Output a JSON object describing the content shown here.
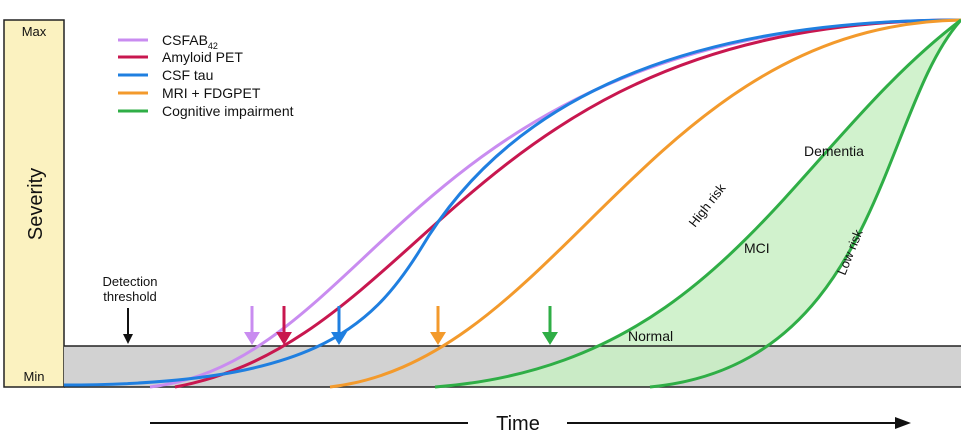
{
  "y_axis": {
    "title": "Severity",
    "max_label": "Max",
    "min_label": "Min",
    "band_color": "#fbf2c0"
  },
  "x_axis": {
    "title": "Time"
  },
  "threshold": {
    "label_line1": "Detection",
    "label_line2": "threshold",
    "band_color": "#d2d2d2"
  },
  "legend": [
    {
      "id": "csfab",
      "label": "CSFAB",
      "subscript": "42",
      "color": "#c98cf0"
    },
    {
      "id": "amyloid",
      "label": "Amyloid PET",
      "color": "#c8174f"
    },
    {
      "id": "csftau",
      "label": "CSF tau",
      "color": "#1f7fe0"
    },
    {
      "id": "mri",
      "label": "MRI + FDGPET",
      "color": "#f39a2c"
    },
    {
      "id": "cog",
      "label": "Cognitive impairment",
      "color": "#2fae46"
    }
  ],
  "regions": {
    "normal": "Normal",
    "mci": "MCI",
    "dementia": "Dementia",
    "high_risk": "High risk",
    "low_risk": "Low risk",
    "shade_color": "#c9f0c4"
  }
}
